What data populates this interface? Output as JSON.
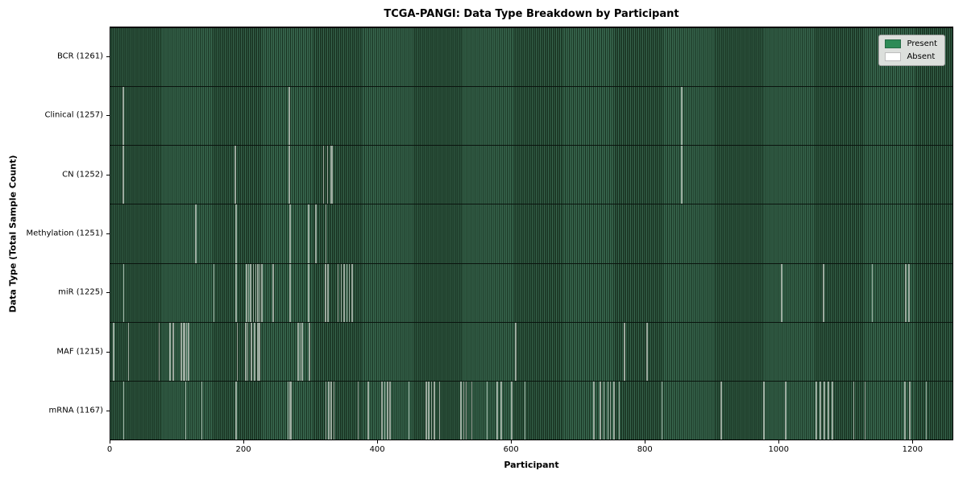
{
  "chart_data": {
    "type": "heatmap",
    "title": "TCGA-PANGI: Data Type Breakdown by Participant",
    "xlabel": "Participant",
    "ylabel": "Data Type (Total Sample Count)",
    "x_range": [
      0,
      1261
    ],
    "x_ticks": [
      0,
      200,
      400,
      600,
      800,
      1000,
      1200
    ],
    "grid": false,
    "legend_position": "upper right",
    "colors": {
      "present": "#2e8b57",
      "present_field_light": "#3a6a51",
      "present_field_dark": "#17301f",
      "absent_line": "#9cab9f",
      "legend_bg": "#dcdfdc"
    },
    "legend": [
      {
        "label": "Present",
        "color": "#2e8b57"
      },
      {
        "label": "Absent",
        "color": "#ffffff"
      }
    ],
    "rows": [
      {
        "name": "BCR",
        "label": "BCR (1261)",
        "total_samples": 1261,
        "absent_participants": []
      },
      {
        "name": "Clinical",
        "label": "Clinical (1257)",
        "total_samples": 1257,
        "absent_participants": [
          18,
          267,
          854,
          855
        ]
      },
      {
        "name": "CN",
        "label": "CN (1252)",
        "total_samples": 1252,
        "absent_participants": [
          18,
          186,
          267,
          318,
          324,
          330,
          331,
          854,
          855
        ]
      },
      {
        "name": "Methylation",
        "label": "Methylation (1251)",
        "total_samples": 1251,
        "absent_participants": [
          127,
          187,
          268,
          296,
          307,
          322
        ]
      },
      {
        "name": "miR",
        "label": "miR (1225)",
        "total_samples": 1225,
        "absent_participants": [
          19,
          154,
          187,
          203,
          206,
          209,
          213,
          217,
          220,
          223,
          226,
          243,
          268,
          296,
          321,
          325,
          340,
          345,
          349,
          353,
          357,
          361,
          1004,
          1067,
          1140,
          1190,
          1195
        ]
      },
      {
        "name": "MAF",
        "label": "MAF (1215)",
        "total_samples": 1215,
        "absent_participants": [
          4,
          26,
          72,
          88,
          93,
          105,
          108,
          110,
          113,
          116,
          189,
          202,
          205,
          210,
          215,
          220,
          222,
          280,
          283,
          286,
          297,
          606,
          769,
          803
        ]
      },
      {
        "name": "mRNA",
        "label": "mRNA (1167)",
        "total_samples": 1167,
        "absent_participants": [
          19,
          112,
          136,
          187,
          265,
          268,
          270,
          322,
          326,
          330,
          334,
          370,
          385,
          406,
          410,
          414,
          418,
          446,
          472,
          476,
          480,
          484,
          492,
          524,
          528,
          532,
          540,
          563,
          578,
          584,
          600,
          620,
          723,
          733,
          738,
          744,
          748,
          753,
          761,
          825,
          914,
          978,
          1010,
          1056,
          1062,
          1068,
          1074,
          1080,
          1112,
          1129,
          1189,
          1196,
          1221
        ]
      }
    ]
  }
}
